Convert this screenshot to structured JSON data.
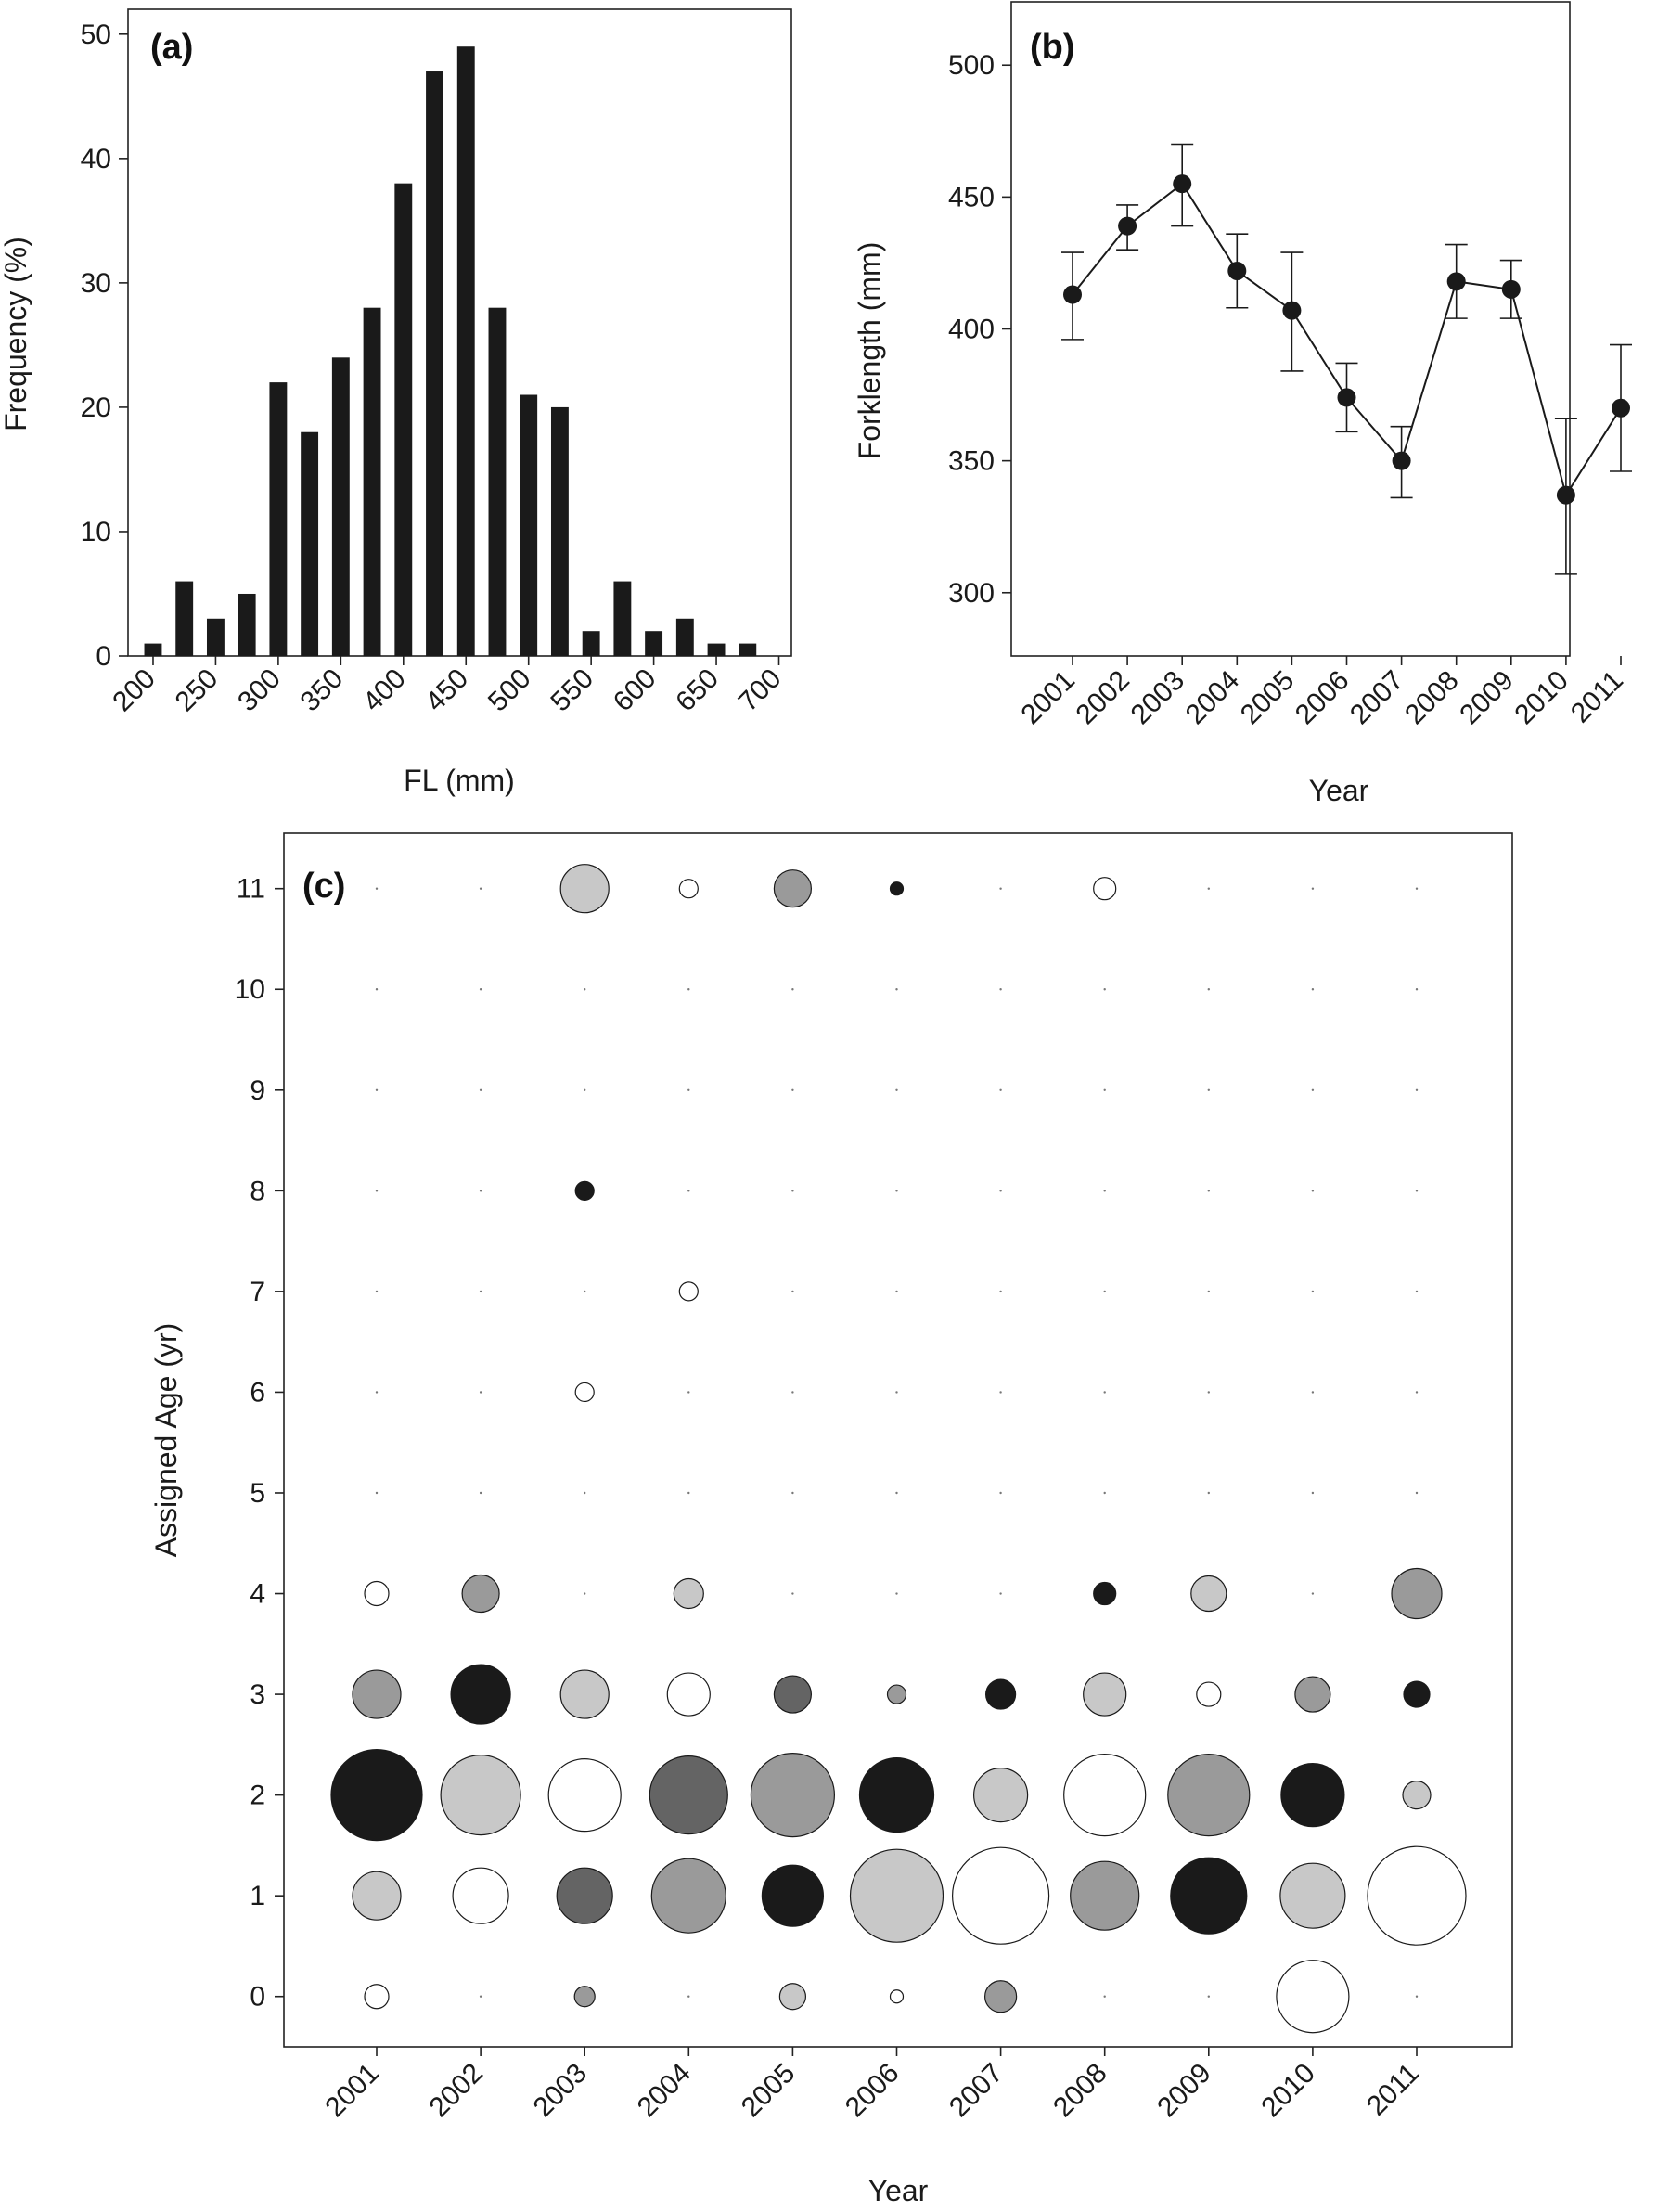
{
  "chart_data": [
    {
      "id": "a",
      "type": "bar",
      "panel_label": "(a)",
      "xlabel": "FL (mm)",
      "ylabel": "Frequency (%)",
      "ylim": [
        0,
        52
      ],
      "xlim": [
        180,
        710
      ],
      "yticks": [
        0,
        10,
        20,
        30,
        40,
        50
      ],
      "xticks": [
        200,
        250,
        300,
        350,
        400,
        450,
        500,
        550,
        600,
        650,
        700
      ],
      "bin_centers": [
        200,
        225,
        250,
        275,
        300,
        325,
        350,
        375,
        400,
        425,
        450,
        475,
        500,
        525,
        550,
        575,
        600,
        625,
        650,
        675
      ],
      "values": [
        1,
        6,
        3,
        5,
        22,
        18,
        24,
        28,
        38,
        47,
        49,
        28,
        21,
        20,
        2,
        6,
        2,
        3,
        1,
        1
      ],
      "bar_color": "#1a1a1a"
    },
    {
      "id": "b",
      "type": "line",
      "panel_label": "(b)",
      "xlabel": "Year",
      "ylabel": "Forklength (mm)",
      "ylim": [
        276,
        524
      ],
      "yticks": [
        300,
        350,
        400,
        450,
        500
      ],
      "categories": [
        "2001",
        "2002",
        "2003",
        "2004",
        "2005",
        "2006",
        "2007",
        "2008",
        "2009",
        "2010",
        "2011"
      ],
      "values": [
        413,
        439,
        455,
        422,
        407,
        374,
        350,
        418,
        415,
        337,
        370
      ],
      "error_low": [
        396,
        430,
        439,
        408,
        384,
        361,
        336,
        404,
        404,
        307,
        346
      ],
      "error_high": [
        429,
        447,
        470,
        436,
        429,
        387,
        363,
        432,
        426,
        366,
        394
      ],
      "marker_color": "#1a1a1a"
    },
    {
      "id": "c",
      "type": "scatter",
      "subtype": "bubble",
      "panel_label": "(c)",
      "xlabel": "Year",
      "ylabel": "Assigned Age (yr)",
      "categories": [
        "2001",
        "2002",
        "2003",
        "2004",
        "2005",
        "2006",
        "2007",
        "2008",
        "2009",
        "2010",
        "2011"
      ],
      "ages": [
        0,
        1,
        2,
        3,
        4,
        5,
        6,
        7,
        8,
        9,
        10,
        11
      ],
      "ylim": [
        -0.5,
        11.55
      ],
      "note_size": "bubble area encodes relative proportion; fill repeats by year",
      "year_colors": [
        "#1a1a1a",
        "#c8c8c8",
        "#ffffff",
        "#646464",
        "#9a9a9a",
        "#1a1a1a",
        "#c8c8c8",
        "#ffffff",
        "#9a9a9a",
        "#1a1a1a",
        "#c8c8c8"
      ],
      "year_colors_override": {
        "2001": "#1a1a1a",
        "2002": "#c8c8c8",
        "2003": "#ffffff",
        "2004": "#646464",
        "2005": "#9a9a9a",
        "2006": "#1a1a1a",
        "2007": "#c8c8c8",
        "2008": "#ffffff",
        "2009": "#9a9a9a",
        "2010": "#1a1a1a",
        "2011": "#c8c8c8"
      },
      "points": [
        {
          "year": "2001",
          "age": 0,
          "r": 13,
          "fill": "#ffffff"
        },
        {
          "year": "2001",
          "age": 1,
          "r": 26,
          "fill": "#c8c8c8"
        },
        {
          "year": "2001",
          "age": 2,
          "r": 49,
          "fill": "#1a1a1a"
        },
        {
          "year": "2001",
          "age": 3,
          "r": 26,
          "fill": "#9a9a9a"
        },
        {
          "year": "2001",
          "age": 4,
          "r": 13,
          "fill": "#ffffff"
        },
        {
          "year": "2002",
          "age": 1,
          "r": 30,
          "fill": "#ffffff"
        },
        {
          "year": "2002",
          "age": 2,
          "r": 43,
          "fill": "#c8c8c8"
        },
        {
          "year": "2002",
          "age": 3,
          "r": 32,
          "fill": "#1a1a1a"
        },
        {
          "year": "2002",
          "age": 4,
          "r": 20,
          "fill": "#9a9a9a"
        },
        {
          "year": "2003",
          "age": 0,
          "r": 11,
          "fill": "#9a9a9a"
        },
        {
          "year": "2003",
          "age": 1,
          "r": 30,
          "fill": "#646464"
        },
        {
          "year": "2003",
          "age": 2,
          "r": 39,
          "fill": "#ffffff"
        },
        {
          "year": "2003",
          "age": 3,
          "r": 26,
          "fill": "#c8c8c8"
        },
        {
          "year": "2003",
          "age": 6,
          "r": 10,
          "fill": "#ffffff"
        },
        {
          "year": "2003",
          "age": 8,
          "r": 10,
          "fill": "#1a1a1a"
        },
        {
          "year": "2003",
          "age": 11,
          "r": 26,
          "fill": "#c8c8c8"
        },
        {
          "year": "2004",
          "age": 1,
          "r": 40,
          "fill": "#9a9a9a"
        },
        {
          "year": "2004",
          "age": 2,
          "r": 42,
          "fill": "#646464"
        },
        {
          "year": "2004",
          "age": 3,
          "r": 23,
          "fill": "#ffffff"
        },
        {
          "year": "2004",
          "age": 4,
          "r": 16,
          "fill": "#c8c8c8"
        },
        {
          "year": "2004",
          "age": 7,
          "r": 10,
          "fill": "#ffffff"
        },
        {
          "year": "2004",
          "age": 11,
          "r": 10,
          "fill": "#ffffff"
        },
        {
          "year": "2005",
          "age": 0,
          "r": 14,
          "fill": "#c8c8c8"
        },
        {
          "year": "2005",
          "age": 1,
          "r": 33,
          "fill": "#1a1a1a"
        },
        {
          "year": "2005",
          "age": 2,
          "r": 45,
          "fill": "#9a9a9a"
        },
        {
          "year": "2005",
          "age": 3,
          "r": 20,
          "fill": "#646464"
        },
        {
          "year": "2005",
          "age": 11,
          "r": 20,
          "fill": "#9a9a9a"
        },
        {
          "year": "2006",
          "age": 0,
          "r": 7,
          "fill": "#ffffff"
        },
        {
          "year": "2006",
          "age": 1,
          "r": 50,
          "fill": "#c8c8c8"
        },
        {
          "year": "2006",
          "age": 2,
          "r": 40,
          "fill": "#1a1a1a"
        },
        {
          "year": "2006",
          "age": 3,
          "r": 10,
          "fill": "#9a9a9a"
        },
        {
          "year": "2006",
          "age": 11,
          "r": 7,
          "fill": "#1a1a1a"
        },
        {
          "year": "2007",
          "age": 0,
          "r": 17,
          "fill": "#9a9a9a"
        },
        {
          "year": "2007",
          "age": 1,
          "r": 52,
          "fill": "#ffffff"
        },
        {
          "year": "2007",
          "age": 2,
          "r": 29,
          "fill": "#c8c8c8"
        },
        {
          "year": "2007",
          "age": 3,
          "r": 16,
          "fill": "#1a1a1a"
        },
        {
          "year": "2008",
          "age": 1,
          "r": 37,
          "fill": "#9a9a9a"
        },
        {
          "year": "2008",
          "age": 2,
          "r": 44,
          "fill": "#ffffff"
        },
        {
          "year": "2008",
          "age": 3,
          "r": 23,
          "fill": "#c8c8c8"
        },
        {
          "year": "2008",
          "age": 4,
          "r": 12,
          "fill": "#1a1a1a"
        },
        {
          "year": "2008",
          "age": 11,
          "r": 12,
          "fill": "#ffffff"
        },
        {
          "year": "2009",
          "age": 1,
          "r": 41,
          "fill": "#1a1a1a"
        },
        {
          "year": "2009",
          "age": 2,
          "r": 44,
          "fill": "#9a9a9a"
        },
        {
          "year": "2009",
          "age": 3,
          "r": 13,
          "fill": "#ffffff"
        },
        {
          "year": "2009",
          "age": 4,
          "r": 19,
          "fill": "#c8c8c8"
        },
        {
          "year": "2010",
          "age": 0,
          "r": 39,
          "fill": "#ffffff"
        },
        {
          "year": "2010",
          "age": 1,
          "r": 35,
          "fill": "#c8c8c8"
        },
        {
          "year": "2010",
          "age": 2,
          "r": 34,
          "fill": "#1a1a1a"
        },
        {
          "year": "2010",
          "age": 3,
          "r": 19,
          "fill": "#9a9a9a"
        },
        {
          "year": "2011",
          "age": 1,
          "r": 53,
          "fill": "#ffffff"
        },
        {
          "year": "2011",
          "age": 2,
          "r": 15,
          "fill": "#c8c8c8"
        },
        {
          "year": "2011",
          "age": 3,
          "r": 14,
          "fill": "#1a1a1a"
        },
        {
          "year": "2011",
          "age": 4,
          "r": 27,
          "fill": "#9a9a9a"
        }
      ]
    }
  ]
}
